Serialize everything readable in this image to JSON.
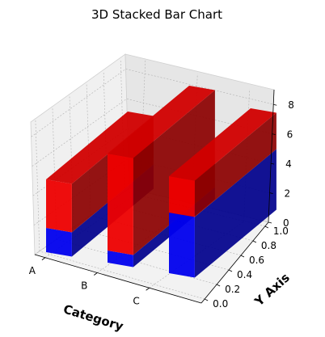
{
  "chart_data": {
    "type": "bar",
    "variant": "3d-stacked",
    "title": "3D Stacked Bar Chart",
    "xlabel": "Category",
    "ylabel": "Y Axis",
    "zlabel": "",
    "categories": [
      "A",
      "B",
      "C"
    ],
    "series": [
      {
        "values": [
          2,
          1,
          5
        ],
        "color": "#0000ff"
      },
      {
        "values": [
          4,
          8,
          3
        ],
        "color": "#ff0000"
      }
    ],
    "bar_depth": [
      0.0,
      1.0
    ],
    "y_ticks": [
      "0.0",
      "0.2",
      "0.4",
      "0.6",
      "0.8",
      "1.0"
    ],
    "z_ticks": [
      "0",
      "2",
      "4",
      "6",
      "8"
    ],
    "zlim": [
      0,
      9
    ],
    "grid": true
  }
}
